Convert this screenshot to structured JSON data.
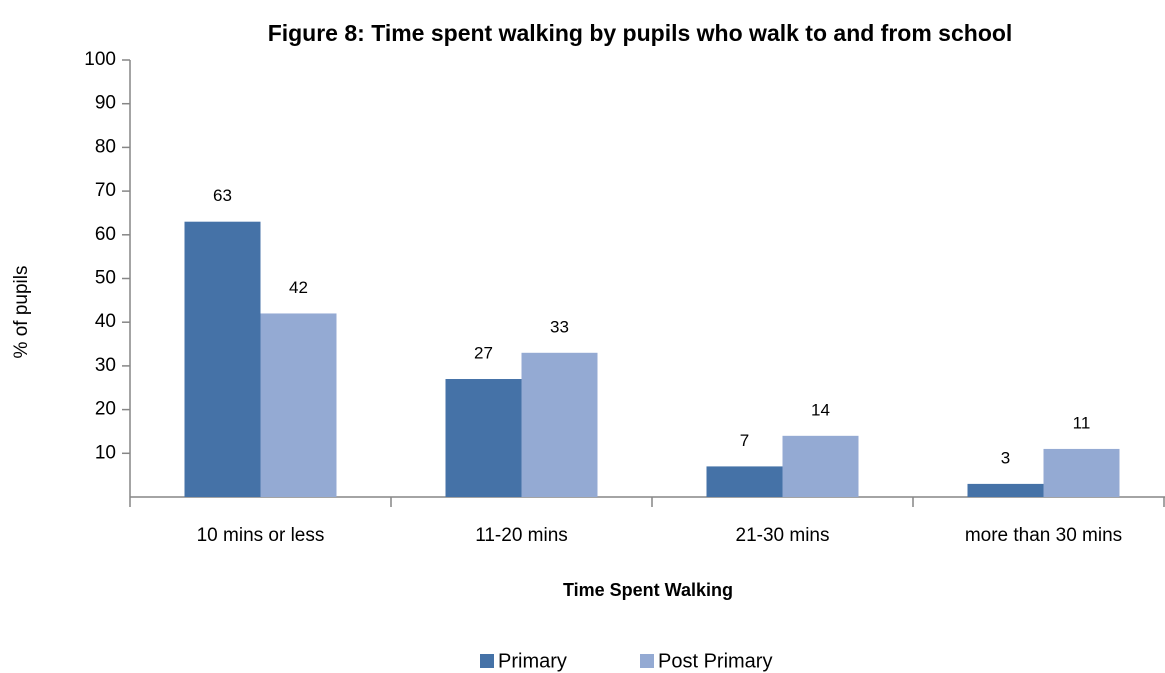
{
  "chart_data": {
    "type": "bar",
    "title": "Figure 8: Time spent walking by pupils who walk to and from school",
    "x_label": "Time Spent Walking",
    "y_label": "% of pupils",
    "categories": [
      "10 mins or less",
      "11-20 mins",
      "21-30 mins",
      "more than 30 mins"
    ],
    "series": [
      {
        "name": "Primary",
        "color": "#4572a7",
        "values": [
          63,
          27,
          7,
          3
        ]
      },
      {
        "name": "Post Primary",
        "color": "#94aad3",
        "values": [
          42,
          33,
          14,
          11
        ]
      }
    ],
    "ylim": [
      0,
      100
    ],
    "yticks": [
      10,
      20,
      30,
      40,
      50,
      60,
      70,
      80,
      90,
      100
    ],
    "legend": "bottom",
    "grid": false
  }
}
